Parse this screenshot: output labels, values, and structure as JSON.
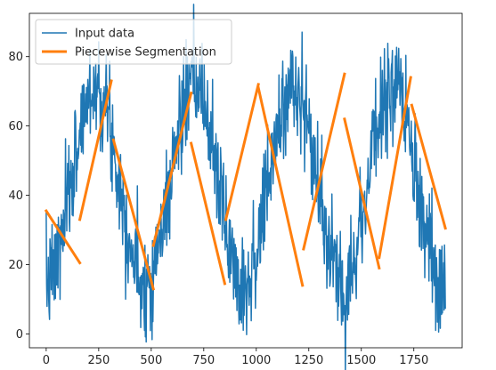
{
  "chart_data": {
    "type": "line",
    "title": "",
    "xlabel": "",
    "ylabel": "",
    "xlim": [
      -80,
      1980
    ],
    "ylim": [
      -4,
      92.5
    ],
    "xticks": [
      0,
      250,
      500,
      750,
      1000,
      1250,
      1500,
      1750
    ],
    "yticks": [
      0,
      20,
      40,
      60,
      80
    ],
    "legend_position": "top-left",
    "colors": {
      "input": "#1f77b4",
      "segments": "#ff7f0e",
      "axes": "#000000"
    },
    "series": [
      {
        "name": "Input data",
        "kind": "noisy-sine",
        "x_range": [
          0,
          1900
        ],
        "step": 2,
        "mean": 43,
        "amplitude": 28,
        "period": 470,
        "phase_deg": 0,
        "noise_sd": 7.5,
        "seed": 7
      },
      {
        "name": "Piecewise Segmentation",
        "segments": [
          [
            [
              0,
              35.5
            ],
            [
              160,
              20.5
            ]
          ],
          [
            [
              160,
              33
            ],
            [
              310,
              73
            ]
          ],
          [
            [
              320,
              56
            ],
            [
              510,
              13
            ]
          ],
          [
            [
              510,
              25.5
            ],
            [
              690,
              69.5
            ]
          ],
          [
            [
              690,
              55
            ],
            [
              850,
              14.5
            ]
          ],
          [
            [
              855,
              33
            ],
            [
              1010,
              72
            ]
          ],
          [
            [
              1010,
              71
            ],
            [
              1220,
              14
            ]
          ],
          [
            [
              1225,
              24.5
            ],
            [
              1420,
              75
            ]
          ],
          [
            [
              1420,
              62
            ],
            [
              1585,
              19
            ]
          ],
          [
            [
              1585,
              22
            ],
            [
              1735,
              74
            ]
          ],
          [
            [
              1740,
              66
            ],
            [
              1900,
              30.5
            ]
          ]
        ]
      }
    ]
  }
}
